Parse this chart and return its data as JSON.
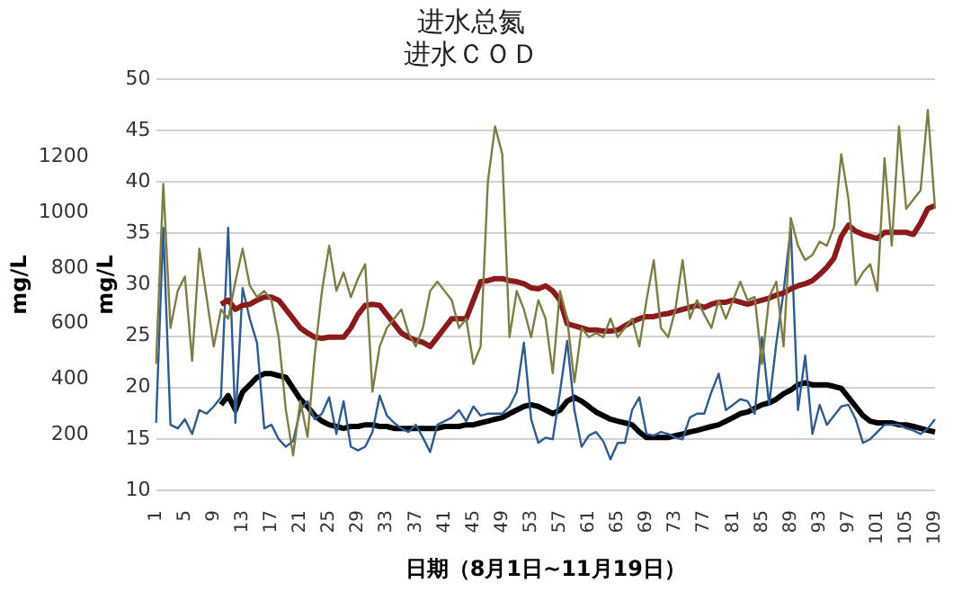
{
  "chart_data": {
    "type": "line",
    "title": "进水总氮",
    "subtitle": "进水ＣＯＤ",
    "xlabel": "日期（8月1日~11月19日）",
    "ylabel": "mg/L",
    "y2label": "mg/L",
    "categories": [
      "1",
      null,
      null,
      null,
      "5",
      null,
      null,
      null,
      "9",
      null,
      null,
      null,
      "13",
      null,
      null,
      null,
      "17",
      null,
      null,
      null,
      "21",
      null,
      null,
      null,
      "25",
      null,
      null,
      null,
      "29",
      null,
      null,
      null,
      "33",
      null,
      null,
      null,
      "37",
      null,
      null,
      null,
      "41",
      null,
      null,
      null,
      "45",
      null,
      null,
      null,
      "49",
      null,
      null,
      null,
      "53",
      null,
      null,
      null,
      "57",
      null,
      null,
      null,
      "61",
      null,
      null,
      null,
      "65",
      null,
      null,
      null,
      "69",
      null,
      null,
      null,
      "73",
      null,
      null,
      null,
      "77",
      null,
      null,
      null,
      "81",
      null,
      null,
      null,
      "85",
      null,
      null,
      null,
      "89",
      null,
      null,
      null,
      "93",
      null,
      null,
      null,
      "97",
      null,
      null,
      null,
      "101",
      null,
      null,
      null,
      "105",
      null,
      null,
      null,
      "109"
    ],
    "series": [
      {
        "color": "#7d7d45",
        "axis": "y",
        "values": [
          22.3,
          39.8,
          25.8,
          29.4,
          30.8,
          22.6,
          33.5,
          28.8,
          24.0,
          27.6,
          26.7,
          30.3,
          33.5,
          29.9,
          28.8,
          29.4,
          28.5,
          24.9,
          17.8,
          13.4,
          18.7,
          15.2,
          23.2,
          29.4,
          33.8,
          29.4,
          31.2,
          28.8,
          30.6,
          32.0,
          19.6,
          24.0,
          25.8,
          26.7,
          27.6,
          25.3,
          24.0,
          25.8,
          29.4,
          30.3,
          29.4,
          28.5,
          25.8,
          26.7,
          22.3,
          24.0,
          40.0,
          45.4,
          42.7,
          24.9,
          29.4,
          27.6,
          24.9,
          28.5,
          26.7,
          21.4,
          29.4,
          26.7,
          20.5,
          25.8,
          24.9,
          25.3,
          24.9,
          26.7,
          24.9,
          25.8,
          26.7,
          24.0,
          28.5,
          32.4,
          25.8,
          24.9,
          27.6,
          32.4,
          26.7,
          28.5,
          27.1,
          25.8,
          28.5,
          26.7,
          28.5,
          30.3,
          28.5,
          28.8,
          22.3,
          28.8,
          30.3,
          24.0,
          36.5,
          33.8,
          32.4,
          32.9,
          34.2,
          33.8,
          35.6,
          42.7,
          38.3,
          30.0,
          31.2,
          32.0,
          29.4,
          42.3,
          33.8,
          45.4,
          37.4,
          38.3,
          39.2,
          47.0,
          37.4
        ]
      },
      {
        "color": "#8b1a1a",
        "axis": "y",
        "values": [
          null,
          null,
          null,
          null,
          null,
          null,
          null,
          null,
          null,
          28.1,
          28.5,
          27.6,
          28.0,
          28.1,
          28.5,
          28.8,
          28.8,
          28.5,
          27.6,
          26.7,
          25.8,
          25.3,
          24.9,
          24.8,
          24.9,
          24.9,
          24.9,
          25.8,
          27.1,
          28.0,
          28.1,
          28.0,
          27.1,
          26.2,
          25.3,
          24.9,
          24.6,
          24.4,
          24.0,
          24.9,
          25.8,
          26.7,
          26.7,
          26.7,
          28.5,
          30.3,
          30.4,
          30.6,
          30.6,
          30.4,
          30.3,
          30.1,
          29.7,
          29.6,
          29.9,
          29.4,
          28.5,
          26.2,
          26.0,
          25.8,
          25.6,
          25.6,
          25.5,
          25.5,
          25.6,
          26.0,
          26.4,
          26.7,
          26.9,
          26.9,
          27.1,
          27.2,
          27.4,
          27.6,
          27.8,
          28.0,
          27.8,
          28.1,
          28.3,
          28.3,
          28.5,
          28.3,
          28.1,
          28.3,
          28.5,
          28.7,
          29.0,
          29.2,
          29.6,
          29.9,
          30.1,
          30.4,
          31.0,
          31.7,
          32.6,
          34.7,
          35.8,
          35.2,
          34.9,
          34.7,
          34.5,
          35.1,
          35.1,
          35.1,
          35.1,
          34.9,
          36.0,
          37.4,
          37.7
        ]
      },
      {
        "color": "#2f5b8e",
        "axis": "y2",
        "values": [
          243,
          945,
          236,
          223,
          256,
          203,
          289,
          276,
          302,
          335,
          945,
          243,
          728,
          617,
          531,
          223,
          236,
          184,
          157,
          177,
          289,
          321,
          256,
          276,
          335,
          203,
          321,
          157,
          144,
          157,
          210,
          341,
          269,
          243,
          223,
          210,
          236,
          190,
          138,
          236,
          249,
          262,
          289,
          249,
          302,
          269,
          276,
          276,
          276,
          302,
          354,
          531,
          256,
          171,
          190,
          184,
          354,
          538,
          289,
          157,
          197,
          210,
          177,
          112,
          171,
          171,
          289,
          335,
          203,
          197,
          210,
          203,
          190,
          184,
          262,
          276,
          276,
          354,
          420,
          289,
          308,
          328,
          321,
          276,
          551,
          308,
          531,
          715,
          945,
          289,
          485,
          203,
          308,
          236,
          269,
          302,
          308,
          256,
          171,
          184,
          210,
          236,
          236,
          236,
          223,
          216,
          203,
          223,
          256
        ]
      },
      {
        "color": "#000000",
        "axis": "y2",
        "values": [
          null,
          null,
          null,
          null,
          null,
          null,
          null,
          null,
          null,
          308,
          341,
          289,
          354,
          380,
          407,
          420,
          420,
          413,
          407,
          367,
          328,
          302,
          269,
          249,
          236,
          230,
          223,
          230,
          230,
          236,
          236,
          230,
          230,
          223,
          223,
          223,
          223,
          223,
          223,
          223,
          230,
          230,
          230,
          236,
          236,
          243,
          249,
          256,
          262,
          276,
          289,
          302,
          308,
          302,
          289,
          276,
          289,
          321,
          335,
          321,
          302,
          282,
          269,
          256,
          249,
          243,
          236,
          210,
          190,
          190,
          190,
          190,
          197,
          203,
          210,
          216,
          223,
          230,
          236,
          249,
          262,
          276,
          282,
          295,
          308,
          315,
          328,
          348,
          361,
          380,
          387,
          380,
          380,
          380,
          374,
          367,
          335,
          302,
          269,
          249,
          243,
          243,
          243,
          236,
          236,
          230,
          223,
          216,
          210
        ]
      }
    ],
    "ylim": [
      10,
      50
    ],
    "yticks": [
      10,
      15,
      20,
      25,
      30,
      35,
      40,
      45,
      50
    ],
    "y2lim": [
      0,
      1480
    ],
    "y2ticks": [
      200,
      400,
      600,
      800,
      1000,
      1200
    ],
    "grid": "y",
    "legend": false,
    "marker": "none",
    "line_style": "solid"
  }
}
